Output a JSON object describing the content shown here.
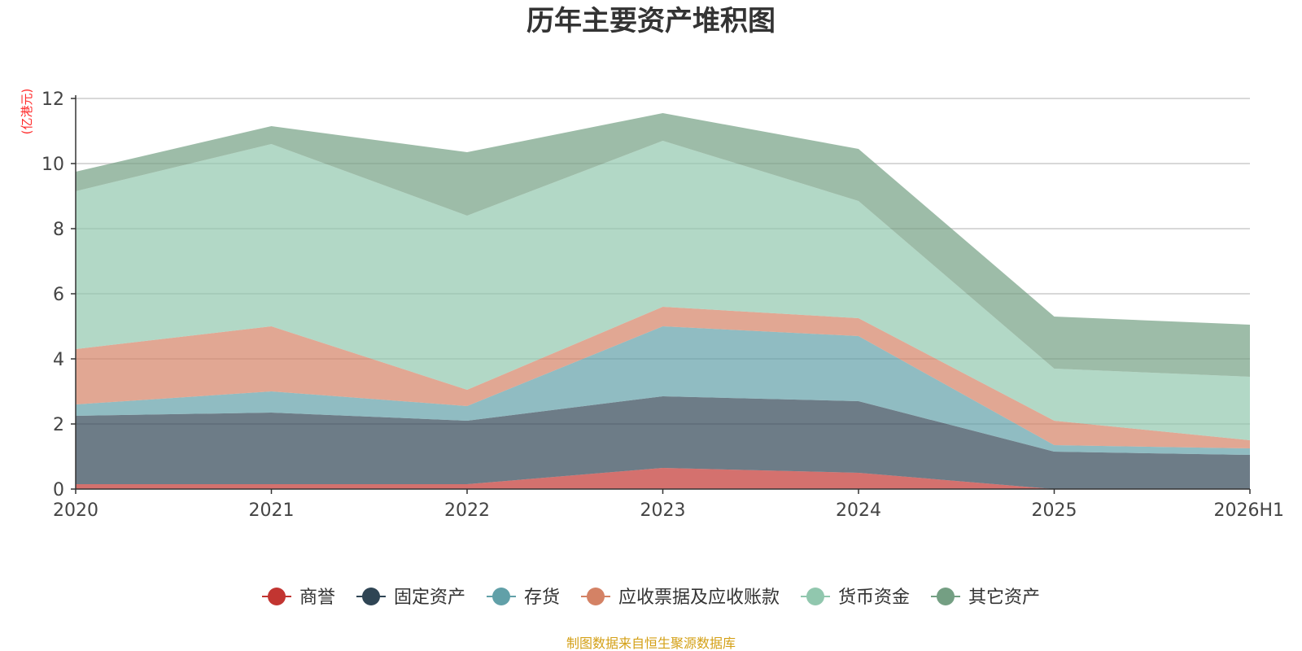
{
  "chart_data": {
    "type": "area",
    "stacked": true,
    "title": "历年主要资产堆积图",
    "unit_label": "(亿港元)",
    "categories": [
      "2020",
      "2021",
      "2022",
      "2023",
      "2024",
      "2025",
      "2026H1"
    ],
    "ylim": [
      0,
      12
    ],
    "yticks": [
      "0",
      "2",
      "4",
      "6",
      "8",
      "10",
      "12"
    ],
    "grid": true,
    "legend_position": "bottom",
    "series": [
      {
        "name": "商誉",
        "color": "#c23531",
        "values": [
          0.15,
          0.15,
          0.15,
          0.65,
          0.5,
          0.0,
          0.0
        ]
      },
      {
        "name": "固定资产",
        "color": "#2f4554",
        "values": [
          2.1,
          2.2,
          1.95,
          2.2,
          2.2,
          1.15,
          1.05
        ]
      },
      {
        "name": "存货",
        "color": "#61a0a8",
        "values": [
          0.35,
          0.65,
          0.45,
          2.15,
          2.0,
          0.2,
          0.2
        ]
      },
      {
        "name": "应收票据及应收账款",
        "color": "#d48265",
        "values": [
          1.7,
          2.0,
          0.5,
          0.6,
          0.55,
          0.75,
          0.25
        ]
      },
      {
        "name": "货币资金",
        "color": "#91c7ae",
        "values": [
          4.85,
          5.6,
          5.35,
          5.1,
          3.6,
          1.6,
          1.95
        ]
      },
      {
        "name": "其它资产",
        "color": "#749f83",
        "values": [
          0.6,
          0.55,
          1.95,
          0.85,
          1.6,
          1.6,
          1.6
        ]
      }
    ],
    "source_note": "制图数据来自恒生聚源数据库"
  }
}
